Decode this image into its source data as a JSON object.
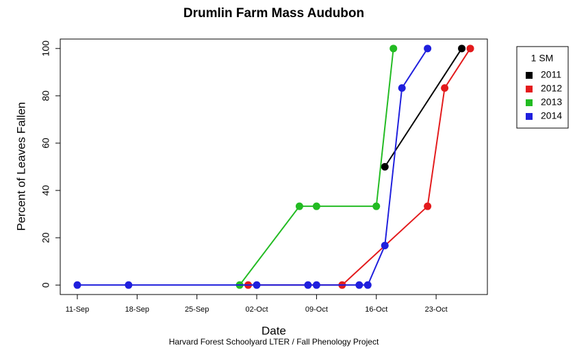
{
  "chart_data": {
    "type": "line",
    "title": "Drumlin Farm Mass Audubon",
    "x_label": "Date",
    "y_label": "Percent of Leaves Fallen",
    "caption": "Harvard Forest Schoolyard LTER / Fall Phenology Project",
    "legend_title": "1 SM",
    "legend_position": "right",
    "xlim": [
      "09-Sep",
      "29-Oct"
    ],
    "xticks": [
      "11-Sep",
      "18-Sep",
      "25-Sep",
      "02-Oct",
      "09-Oct",
      "16-Oct",
      "23-Oct"
    ],
    "ylim": [
      -4,
      104
    ],
    "yticks": [
      0,
      20,
      40,
      60,
      80,
      100
    ],
    "series": [
      {
        "name": "2011",
        "color": "#000000",
        "x": [
          "17-Oct",
          "26-Oct"
        ],
        "values": [
          50,
          100
        ]
      },
      {
        "name": "2012",
        "color": "#e31a1c",
        "x": [
          "01-Oct",
          "12-Oct",
          "22-Oct",
          "24-Oct",
          "27-Oct"
        ],
        "values": [
          0,
          0,
          33.3,
          83.3,
          100
        ]
      },
      {
        "name": "2013",
        "color": "#22bb22",
        "x": [
          "30-Sep",
          "07-Oct",
          "09-Oct",
          "16-Oct",
          "18-Oct"
        ],
        "values": [
          0,
          33.3,
          33.3,
          33.3,
          100
        ]
      },
      {
        "name": "2014",
        "color": "#1f1fdd",
        "x": [
          "11-Sep",
          "17-Sep",
          "02-Oct",
          "08-Oct",
          "09-Oct",
          "14-Oct",
          "15-Oct",
          "17-Oct",
          "19-Oct",
          "22-Oct"
        ],
        "values": [
          0,
          0,
          0,
          0,
          0,
          0,
          0,
          16.7,
          83.3,
          100
        ]
      }
    ]
  }
}
